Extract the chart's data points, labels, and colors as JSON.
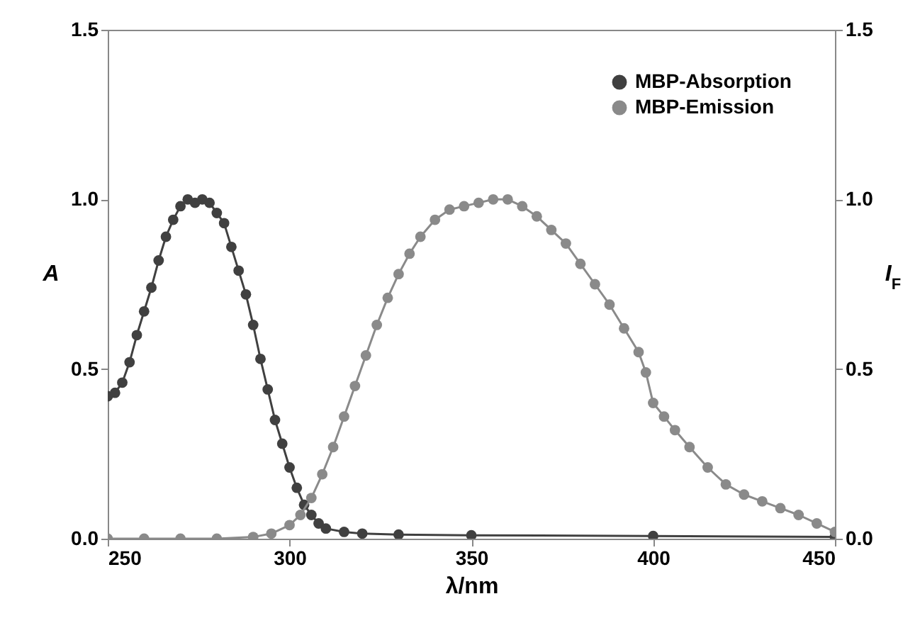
{
  "chart_data": {
    "type": "line",
    "xlabel": "λ/nm",
    "ylabel": "A",
    "y2label": "I$_{F}$",
    "series": [
      {
        "name": "MBP-Absorption",
        "color": "#404040",
        "x": [
          250,
          252,
          254,
          256,
          258,
          260,
          262,
          264,
          266,
          268,
          270,
          272,
          274,
          276,
          278,
          280,
          282,
          284,
          286,
          288,
          290,
          292,
          294,
          296,
          298,
          300,
          302,
          304,
          306,
          308,
          310,
          315,
          320,
          330,
          350,
          400,
          450
        ],
        "values": [
          0.42,
          0.43,
          0.46,
          0.52,
          0.6,
          0.67,
          0.74,
          0.82,
          0.89,
          0.94,
          0.98,
          1.0,
          0.99,
          1.0,
          0.99,
          0.96,
          0.93,
          0.86,
          0.79,
          0.72,
          0.63,
          0.53,
          0.44,
          0.35,
          0.28,
          0.21,
          0.15,
          0.1,
          0.07,
          0.045,
          0.03,
          0.02,
          0.015,
          0.012,
          0.01,
          0.008,
          0.005
        ]
      },
      {
        "name": "MBP-Emission",
        "color": "#8a8a8a",
        "axis": "y2",
        "x": [
          250,
          260,
          270,
          280,
          290,
          295,
          300,
          303,
          306,
          309,
          312,
          315,
          318,
          321,
          324,
          327,
          330,
          333,
          336,
          340,
          344,
          348,
          352,
          356,
          360,
          364,
          368,
          372,
          376,
          380,
          384,
          388,
          392,
          396,
          398,
          400,
          403,
          406,
          410,
          415,
          420,
          425,
          430,
          435,
          440,
          445,
          450
        ],
        "values": [
          0,
          0,
          0,
          0,
          0.005,
          0.015,
          0.04,
          0.07,
          0.12,
          0.19,
          0.27,
          0.36,
          0.45,
          0.54,
          0.63,
          0.71,
          0.78,
          0.84,
          0.89,
          0.94,
          0.97,
          0.98,
          0.99,
          1.0,
          1.0,
          0.98,
          0.95,
          0.91,
          0.87,
          0.81,
          0.75,
          0.69,
          0.62,
          0.55,
          0.49,
          0.4,
          0.36,
          0.32,
          0.27,
          0.21,
          0.16,
          0.13,
          0.11,
          0.09,
          0.07,
          0.045,
          0.02
        ]
      }
    ],
    "xlim": [
      250,
      450
    ],
    "xticks": [
      250,
      300,
      350,
      400,
      450
    ],
    "ylim": [
      0,
      1.5
    ],
    "yticks": [
      {
        "value": 0,
        "label": "0.0"
      },
      {
        "value": 0.5,
        "label": "0.5"
      },
      {
        "value": 1,
        "label": "1.0"
      },
      {
        "value": 1.5,
        "label": "1.5"
      }
    ],
    "y2lim": [
      0,
      1.5
    ],
    "y2ticks": [
      {
        "value": 0,
        "label": "0.0"
      },
      {
        "value": 0.5,
        "label": "0.5"
      },
      {
        "value": 1,
        "label": "1.0"
      },
      {
        "value": 1.5,
        "label": "1.5"
      }
    ],
    "grid": false,
    "legend": "top right",
    "marker": "circle",
    "line_style": "solid"
  }
}
